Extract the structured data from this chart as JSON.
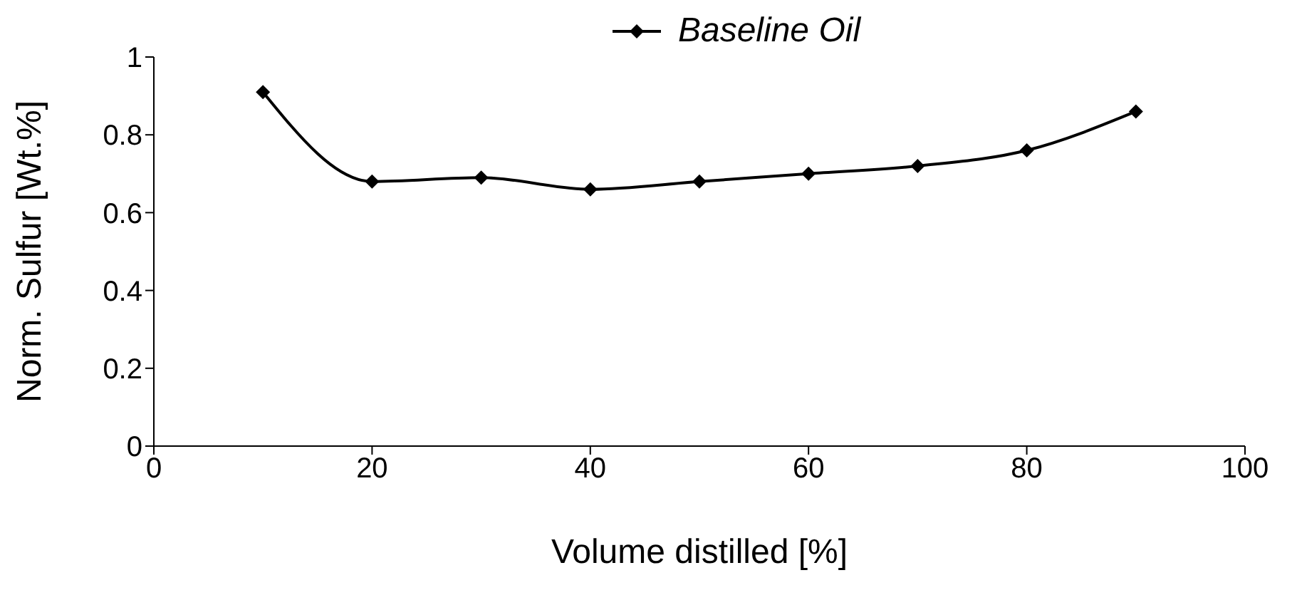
{
  "chart_data": {
    "type": "line",
    "xlabel": "Volume distilled [%]",
    "ylabel": "Norm. Sulfur [Wt.%]",
    "x": [
      10,
      20,
      30,
      40,
      50,
      60,
      70,
      80,
      90
    ],
    "series": [
      {
        "name": "Baseline Oil",
        "color": "#000000",
        "values": [
          0.91,
          0.68,
          0.69,
          0.66,
          0.68,
          0.7,
          0.72,
          0.76,
          0.86
        ]
      }
    ],
    "xlim": [
      0,
      100
    ],
    "xticks": [
      0,
      20,
      40,
      60,
      80,
      100
    ],
    "ylim": [
      0,
      1
    ],
    "yticks": [
      0,
      0.2,
      0.4,
      0.6,
      0.8,
      1
    ],
    "grid": false,
    "legend": "top",
    "marker": "diamond",
    "line_style": "solid"
  }
}
